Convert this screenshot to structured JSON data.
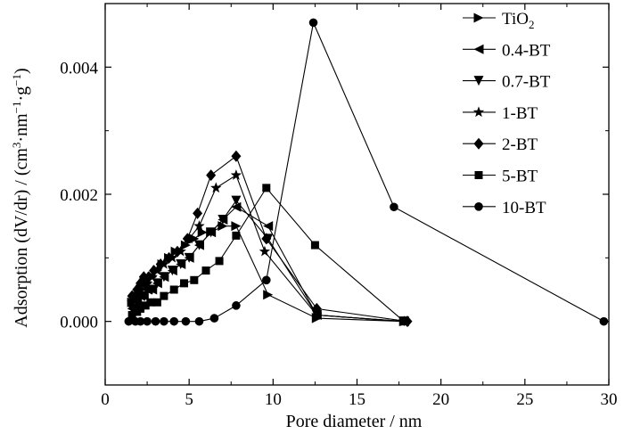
{
  "chart_data": {
    "type": "line",
    "title": "",
    "xlabel": "Pore diameter / nm",
    "ylabel": {
      "main": "Adsorption (dV/dr)  / (cm",
      "sup1": "3",
      "mid": "·nm",
      "sup2": "−1",
      "mid2": "·g",
      "sup3": "−1",
      "end": ")"
    },
    "xlim": [
      0,
      30
    ],
    "ylim": [
      -0.001,
      0.005
    ],
    "xticks": [
      0,
      5,
      10,
      15,
      20,
      25,
      30
    ],
    "yticks": [
      0.0,
      0.002,
      0.004
    ],
    "ytick_labels": [
      "0.000",
      "0.002",
      "0.004"
    ],
    "legend_position": "top-right",
    "series": [
      {
        "name": "TiO2",
        "label_base": "TiO",
        "label_sub": "2",
        "marker": "triangle-right",
        "x": [
          1.6,
          1.9,
          2.1,
          2.3,
          2.5,
          2.8,
          3.1,
          3.4,
          3.8,
          4.2,
          4.8,
          5.3,
          5.8,
          6.3,
          7.0,
          7.8,
          9.7,
          12.6,
          17.8
        ],
        "y": [
          0.0003,
          0.0004,
          0.0005,
          0.0006,
          0.0006,
          0.0007,
          0.0008,
          0.0009,
          0.001,
          0.0011,
          0.0012,
          0.0013,
          0.0014,
          0.0014,
          0.0015,
          0.0015,
          0.00042,
          5e-05,
          0.0
        ]
      },
      {
        "name": "0.4-BT",
        "label_base": "0.4-BT",
        "marker": "triangle-left",
        "x": [
          1.6,
          1.9,
          2.1,
          2.3,
          2.5,
          2.8,
          3.1,
          3.5,
          4.0,
          4.5,
          5.0,
          5.6,
          6.3,
          7.0,
          7.8,
          9.7,
          12.6,
          17.8
        ],
        "y": [
          0.0002,
          0.0003,
          0.0004,
          0.0004,
          0.0005,
          0.0005,
          0.0006,
          0.0007,
          0.0008,
          0.0009,
          0.001,
          0.0012,
          0.0014,
          0.0016,
          0.0018,
          0.0015,
          0.0001,
          0.0
        ]
      },
      {
        "name": "0.7-BT",
        "label_base": "0.7-BT",
        "marker": "triangle-down",
        "x": [
          1.6,
          1.9,
          2.1,
          2.3,
          2.5,
          2.8,
          3.1,
          3.5,
          4.0,
          4.5,
          5.0,
          5.6,
          6.3,
          7.0,
          7.8,
          9.7,
          12.6,
          17.8
        ],
        "y": [
          0.0002,
          0.0003,
          0.0004,
          0.0004,
          0.0005,
          0.0005,
          0.0006,
          0.0007,
          0.0008,
          0.0009,
          0.001,
          0.0012,
          0.0014,
          0.0016,
          0.0019,
          0.0013,
          0.0001,
          0.0
        ]
      },
      {
        "name": "1-BT",
        "label_base": "1-BT",
        "marker": "star",
        "x": [
          1.6,
          1.9,
          2.1,
          2.3,
          2.5,
          2.8,
          3.1,
          3.5,
          4.0,
          4.5,
          5.0,
          5.6,
          6.6,
          7.8,
          9.5,
          12.6,
          17.8
        ],
        "y": [
          0.0003,
          0.0004,
          0.0005,
          0.0006,
          0.0006,
          0.0007,
          0.0008,
          0.0009,
          0.001,
          0.0011,
          0.0013,
          0.0015,
          0.0021,
          0.0023,
          0.0011,
          0.0001,
          0.0
        ]
      },
      {
        "name": "2-BT",
        "label_base": "2-BT",
        "marker": "diamond",
        "x": [
          1.6,
          1.9,
          2.1,
          2.3,
          2.6,
          2.9,
          3.3,
          3.8,
          4.3,
          4.9,
          5.5,
          6.3,
          7.8,
          9.6,
          12.6,
          18.0
        ],
        "y": [
          0.0004,
          0.0005,
          0.0006,
          0.0007,
          0.0007,
          0.0008,
          0.0009,
          0.001,
          0.0011,
          0.0013,
          0.0017,
          0.0023,
          0.0026,
          0.0013,
          0.0002,
          0.0
        ]
      },
      {
        "name": "5-BT",
        "label_base": "5-BT",
        "marker": "square",
        "x": [
          1.6,
          1.9,
          2.1,
          2.4,
          2.7,
          3.1,
          3.5,
          4.1,
          4.7,
          5.3,
          6.0,
          6.8,
          7.8,
          9.6,
          12.5,
          17.8
        ],
        "y": [
          0.0001,
          0.00015,
          0.0002,
          0.00025,
          0.0003,
          0.0003,
          0.0004,
          0.0005,
          0.0006,
          0.00065,
          0.0008,
          0.00095,
          0.00135,
          0.0021,
          0.0012,
          0.0
        ]
      },
      {
        "name": "10-BT",
        "label_base": "10-BT",
        "marker": "circle",
        "x": [
          1.4,
          1.8,
          2.1,
          2.5,
          3.0,
          3.5,
          4.1,
          4.8,
          5.6,
          6.5,
          7.8,
          9.6,
          12.4,
          17.2,
          29.7
        ],
        "y": [
          0.0,
          0.0,
          0.0,
          0.0,
          0.0,
          0.0,
          0.0,
          0.0,
          0.0,
          5e-05,
          0.00025,
          0.00065,
          0.0047,
          0.0018,
          0.0
        ]
      }
    ]
  }
}
